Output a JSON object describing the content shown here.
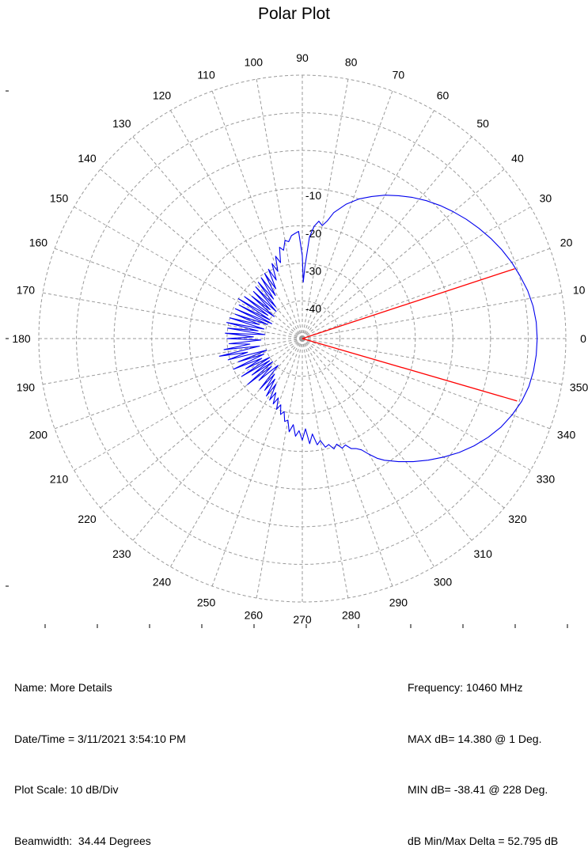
{
  "chart_data": {
    "type": "polar-line",
    "title": "Polar Plot",
    "angle_ticks": [
      "0",
      "10",
      "20",
      "30",
      "40",
      "50",
      "60",
      "70",
      "80",
      "90",
      "100",
      "110",
      "120",
      "130",
      "140",
      "150",
      "160",
      "170",
      "180",
      "190",
      "200",
      "210",
      "220",
      "230",
      "240",
      "250",
      "260",
      "270",
      "280",
      "290",
      "300",
      "310",
      "320",
      "330",
      "340",
      "350"
    ],
    "radial_ticks": [
      "-10",
      "-20",
      "-30",
      "-40"
    ],
    "radial_range_db": [
      -48,
      22
    ],
    "radial_step_db": 10,
    "grid": true,
    "series": [
      {
        "color": "#0000ee",
        "points": [
          [
            0,
            14.4
          ],
          [
            4,
            14.3
          ],
          [
            8,
            13.9
          ],
          [
            12,
            13.2
          ],
          [
            16,
            12.2
          ],
          [
            20,
            11.2
          ],
          [
            24,
            10.0
          ],
          [
            28,
            8.7
          ],
          [
            32,
            7.3
          ],
          [
            36,
            5.9
          ],
          [
            40,
            4.4
          ],
          [
            44,
            2.9
          ],
          [
            48,
            1.3
          ],
          [
            52,
            -0.4
          ],
          [
            56,
            -2.2
          ],
          [
            60,
            -4.0
          ],
          [
            64,
            -6.0
          ],
          [
            68,
            -8.0
          ],
          [
            72,
            -10.5
          ],
          [
            76,
            -13.5
          ],
          [
            78,
            -16.0
          ],
          [
            80,
            -17.5
          ],
          [
            82,
            -16.5
          ],
          [
            84,
            -18.0
          ],
          [
            86,
            -21.0
          ],
          [
            88,
            -29.0
          ],
          [
            89,
            -33.0
          ],
          [
            90,
            -26.0
          ],
          [
            92,
            -19.5
          ],
          [
            94,
            -20.0
          ],
          [
            96,
            -20.5
          ],
          [
            98,
            -22.0
          ],
          [
            100,
            -21.5
          ],
          [
            102,
            -24.0
          ],
          [
            104,
            -23.0
          ],
          [
            106,
            -27.0
          ],
          [
            108,
            -25.0
          ],
          [
            110,
            -29.0
          ],
          [
            112,
            -26.5
          ],
          [
            114,
            -31.0
          ],
          [
            116,
            -27.5
          ],
          [
            118,
            -33.0
          ],
          [
            120,
            -28.0
          ],
          [
            122,
            -34.5
          ],
          [
            124,
            -28.5
          ],
          [
            126,
            -35.0
          ],
          [
            128,
            -29.0
          ],
          [
            130,
            -37.0
          ],
          [
            132,
            -29.5
          ],
          [
            134,
            -38.0
          ],
          [
            136,
            -30.0
          ],
          [
            138,
            -36.5
          ],
          [
            140,
            -30.5
          ],
          [
            142,
            -38.5
          ],
          [
            144,
            -29.0
          ],
          [
            146,
            -37.0
          ],
          [
            148,
            -28.0
          ],
          [
            150,
            -38.0
          ],
          [
            152,
            -29.0
          ],
          [
            154,
            -39.0
          ],
          [
            156,
            -28.5
          ],
          [
            158,
            -38.0
          ],
          [
            160,
            -29.0
          ],
          [
            162,
            -36.0
          ],
          [
            164,
            -28.0
          ],
          [
            166,
            -37.5
          ],
          [
            168,
            -27.5
          ],
          [
            170,
            -36.0
          ],
          [
            172,
            -28.0
          ],
          [
            174,
            -38.0
          ],
          [
            176,
            -27.5
          ],
          [
            178,
            -35.0
          ],
          [
            180,
            -28.0
          ],
          [
            182,
            -37.0
          ],
          [
            184,
            -28.5
          ],
          [
            186,
            -34.0
          ],
          [
            188,
            -27.0
          ],
          [
            190,
            -36.5
          ],
          [
            192,
            -25.5
          ],
          [
            194,
            -33.0
          ],
          [
            196,
            -27.5
          ],
          [
            198,
            -38.0
          ],
          [
            200,
            -30.0
          ],
          [
            202,
            -37.0
          ],
          [
            204,
            -28.0
          ],
          [
            206,
            -36.0
          ],
          [
            208,
            -31.0
          ],
          [
            210,
            -38.0
          ],
          [
            212,
            -29.0
          ],
          [
            214,
            -37.5
          ],
          [
            216,
            -31.5
          ],
          [
            218,
            -38.0
          ],
          [
            220,
            -29.0
          ],
          [
            222,
            -37.0
          ],
          [
            224,
            -32.0
          ],
          [
            226,
            -36.5
          ],
          [
            228,
            -38.4
          ],
          [
            230,
            -30.5
          ],
          [
            232,
            -36.0
          ],
          [
            234,
            -31.0
          ],
          [
            236,
            -35.0
          ],
          [
            238,
            -30.0
          ],
          [
            240,
            -34.0
          ],
          [
            242,
            -29.5
          ],
          [
            244,
            -32.0
          ],
          [
            246,
            -29.0
          ],
          [
            248,
            -31.0
          ],
          [
            250,
            -28.0
          ],
          [
            252,
            -29.5
          ],
          [
            254,
            -27.0
          ],
          [
            256,
            -28.0
          ],
          [
            258,
            -25.5
          ],
          [
            260,
            -26.0
          ],
          [
            262,
            -23.0
          ],
          [
            264,
            -25.0
          ],
          [
            266,
            -22.0
          ],
          [
            268,
            -23.5
          ],
          [
            270,
            -21.0
          ],
          [
            272,
            -24.0
          ],
          [
            274,
            -20.0
          ],
          [
            276,
            -22.5
          ],
          [
            278,
            -19.5
          ],
          [
            280,
            -20.5
          ],
          [
            282,
            -18.5
          ],
          [
            284,
            -19.0
          ],
          [
            286,
            -17.5
          ],
          [
            288,
            -18.5
          ],
          [
            290,
            -17.0
          ],
          [
            292,
            -17.5
          ],
          [
            294,
            -16.0
          ],
          [
            296,
            -15.5
          ],
          [
            298,
            -14.5
          ],
          [
            300,
            -12.5
          ],
          [
            302,
            -10.5
          ],
          [
            304,
            -9.0
          ],
          [
            308,
            -6.5
          ],
          [
            312,
            -4.0
          ],
          [
            316,
            -1.5
          ],
          [
            320,
            1.0
          ],
          [
            324,
            3.5
          ],
          [
            328,
            5.8
          ],
          [
            332,
            7.9
          ],
          [
            336,
            9.8
          ],
          [
            340,
            11.3
          ],
          [
            344,
            12.6
          ],
          [
            348,
            13.5
          ],
          [
            352,
            14.0
          ],
          [
            356,
            14.3
          ],
          [
            360,
            14.4
          ]
        ]
      }
    ],
    "beamwidth_lines": {
      "color": "#ff0000",
      "angles_deg": [
        18.2,
        343.8
      ],
      "level_db": 11.4
    },
    "info_left": [
      "Name: More Details",
      "Date/Time = 3/11/2021 3:54:10 PM",
      "Plot Scale: 10 dB/Div",
      "Beamwidth:  34.44 Degrees"
    ],
    "info_right": [
      "Frequency: 10460 MHz",
      "MAX dB= 14.380 @ 1 Deg.",
      "MIN dB= -38.41 @ 228 Deg.",
      "dB Min/Max Delta = 52.795 dB"
    ],
    "colors": {
      "trace": "#0000ee",
      "beam": "#ff0000",
      "grid": "#9a9a9a"
    }
  }
}
